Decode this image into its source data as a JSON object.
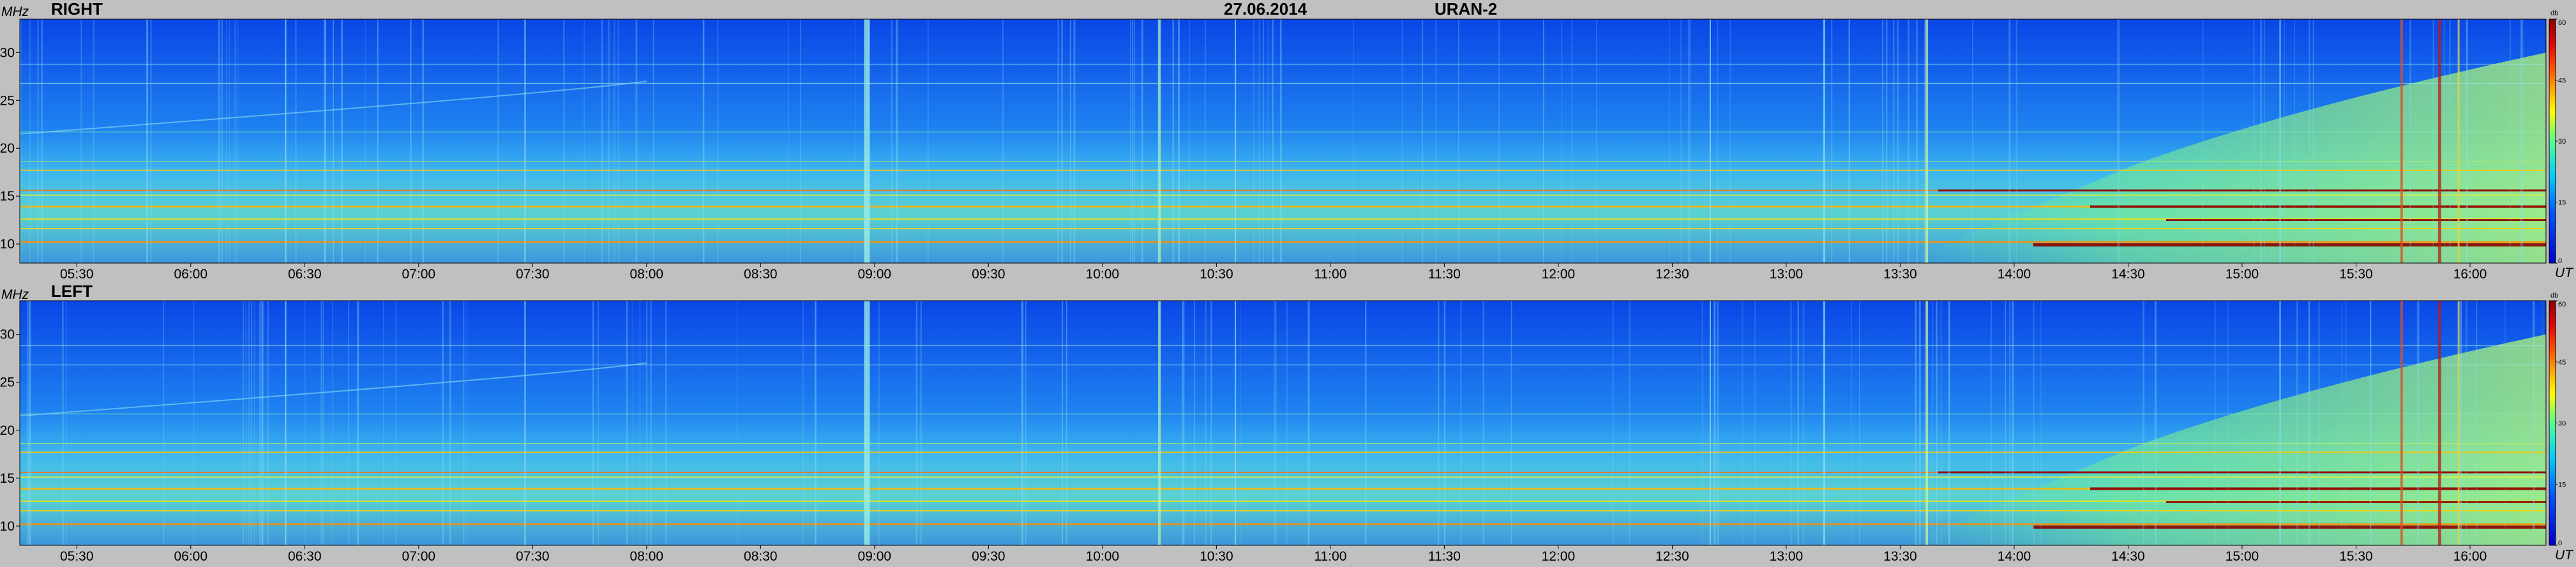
{
  "header": {
    "date": "27.06.2014",
    "instrument": "URAN-2"
  },
  "colors": {
    "background": "#c0c0c0",
    "low": "#0000c8",
    "mid": "#ffff00",
    "high": "#8b0000"
  },
  "chart_data": [
    {
      "type": "heatmap",
      "title": "RIGHT",
      "y_unit": "MHz",
      "x_unit": "UT",
      "colorbar_unit": "db",
      "ylim": [
        8,
        33.5
      ],
      "xlim": [
        "05:15",
        "16:20"
      ],
      "y_ticks": [
        "10",
        "15",
        "20",
        "25",
        "30"
      ],
      "x_ticks": [
        "05:30",
        "06:00",
        "06:30",
        "07:00",
        "07:30",
        "08:00",
        "08:30",
        "09:00",
        "09:30",
        "10:00",
        "10:30",
        "11:00",
        "11:30",
        "12:00",
        "12:30",
        "13:00",
        "13:30",
        "14:00",
        "14:30",
        "15:00",
        "15:30",
        "16:00"
      ],
      "colorbar_ticks": [
        "0",
        "15",
        "30",
        "45",
        "60"
      ],
      "colorbar_range": [
        0,
        60
      ]
    },
    {
      "type": "heatmap",
      "title": "LEFT",
      "y_unit": "MHz",
      "x_unit": "UT",
      "colorbar_unit": "db",
      "ylim": [
        8,
        33.5
      ],
      "xlim": [
        "05:15",
        "16:20"
      ],
      "y_ticks": [
        "10",
        "15",
        "20",
        "25",
        "30"
      ],
      "x_ticks": [
        "05:30",
        "06:00",
        "06:30",
        "07:00",
        "07:30",
        "08:00",
        "08:30",
        "09:00",
        "09:30",
        "10:00",
        "10:30",
        "11:00",
        "11:30",
        "12:00",
        "12:30",
        "13:00",
        "13:30",
        "14:00",
        "14:30",
        "15:00",
        "15:30",
        "16:00"
      ],
      "colorbar_ticks": [
        "0",
        "15",
        "30",
        "45",
        "60"
      ],
      "colorbar_range": [
        0,
        60
      ]
    }
  ]
}
